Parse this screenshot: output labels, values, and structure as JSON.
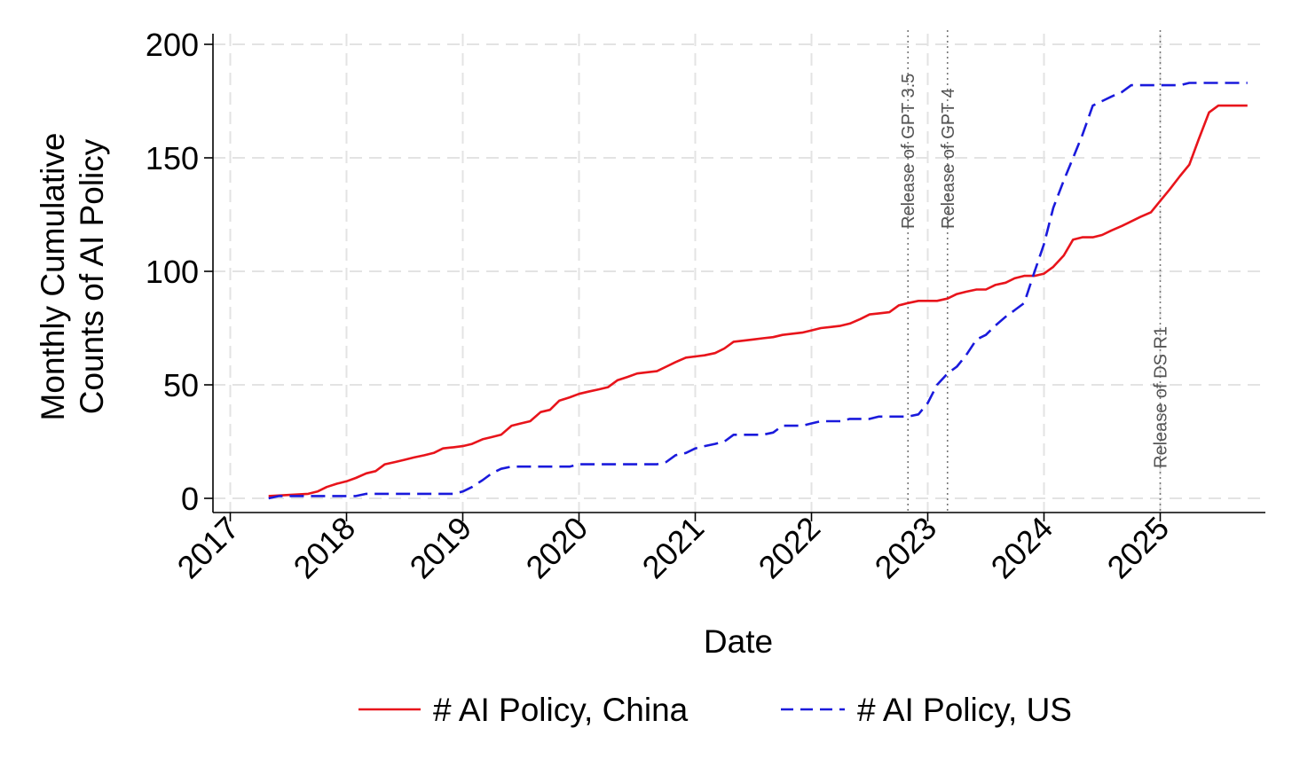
{
  "chart_data": {
    "type": "line",
    "title": "",
    "xlabel": "Date",
    "ylabel_lines": [
      "Monthly Cumulative",
      "Counts of AI Policy"
    ],
    "ylim": [
      0,
      200
    ],
    "xlim": [
      2017.0,
      2025.85
    ],
    "y_ticks": [
      0,
      50,
      100,
      150,
      200
    ],
    "x_ticks": [
      {
        "value": 2017,
        "label": "2017"
      },
      {
        "value": 2018,
        "label": "2018"
      },
      {
        "value": 2019,
        "label": "2019"
      },
      {
        "value": 2020,
        "label": "2020"
      },
      {
        "value": 2021,
        "label": "2021"
      },
      {
        "value": 2022,
        "label": "2022"
      },
      {
        "value": 2023,
        "label": "2023"
      },
      {
        "value": 2024,
        "label": "2024"
      },
      {
        "value": 2025,
        "label": "2025"
      }
    ],
    "grid": true,
    "legend_position": "bottom",
    "annotations": [
      {
        "x": 2022.83,
        "label": "Release of GPT 3.5"
      },
      {
        "x": 2023.17,
        "label": "Release of GPT 4"
      },
      {
        "x": 2025.0,
        "label": "Release of DS R1"
      }
    ],
    "series": [
      {
        "name": "# AI Policy, China",
        "color": "#e8141b",
        "style": "solid",
        "x": [
          2017.33,
          2017.5,
          2017.67,
          2017.75,
          2017.83,
          2017.92,
          2018.0,
          2018.08,
          2018.17,
          2018.25,
          2018.33,
          2018.42,
          2018.5,
          2018.58,
          2018.67,
          2018.75,
          2018.83,
          2018.92,
          2019.0,
          2019.08,
          2019.17,
          2019.25,
          2019.33,
          2019.42,
          2019.5,
          2019.58,
          2019.67,
          2019.75,
          2019.83,
          2019.92,
          2020.0,
          2020.08,
          2020.17,
          2020.25,
          2020.33,
          2020.42,
          2020.5,
          2020.58,
          2020.67,
          2020.75,
          2020.83,
          2020.92,
          2021.0,
          2021.08,
          2021.17,
          2021.25,
          2021.33,
          2021.42,
          2021.5,
          2021.58,
          2021.67,
          2021.75,
          2021.83,
          2021.92,
          2022.0,
          2022.08,
          2022.17,
          2022.25,
          2022.33,
          2022.42,
          2022.5,
          2022.58,
          2022.67,
          2022.75,
          2022.83,
          2022.92,
          2023.0,
          2023.08,
          2023.17,
          2023.25,
          2023.33,
          2023.42,
          2023.5,
          2023.58,
          2023.67,
          2023.75,
          2023.83,
          2023.92,
          2024.0,
          2024.08,
          2024.17,
          2024.25,
          2024.33,
          2024.42,
          2024.5,
          2024.58,
          2024.67,
          2024.75,
          2024.83,
          2024.92,
          2025.0,
          2025.08,
          2025.17,
          2025.25,
          2025.33,
          2025.42,
          2025.5,
          2025.58,
          2025.67,
          2025.75
        ],
        "y": [
          1,
          1.5,
          2,
          3,
          5,
          6.5,
          7.5,
          9,
          11,
          12,
          15,
          16,
          17,
          18,
          19,
          20,
          22,
          22.5,
          23,
          24,
          26,
          27,
          28,
          32,
          33,
          34,
          38,
          39,
          43,
          44.5,
          46,
          47,
          48,
          49,
          52,
          53.5,
          55,
          55.5,
          56,
          58,
          60,
          62,
          62.5,
          63,
          64,
          66,
          69,
          69.5,
          70,
          70.5,
          71,
          72,
          72.5,
          73,
          74,
          75,
          75.5,
          76,
          77,
          79,
          81,
          81.5,
          82,
          85,
          86,
          87,
          87,
          87,
          88,
          90,
          91,
          92,
          92,
          94,
          95,
          97,
          98,
          98,
          99,
          102,
          107,
          114,
          115,
          115,
          116,
          118,
          120,
          122,
          124,
          126,
          131,
          136,
          142,
          147,
          158,
          170,
          173,
          173,
          173,
          173
        ],
        "_note": "last x trimmed"
      },
      {
        "name": "# AI Policy, US",
        "color": "#1a1adc",
        "style": "dashed",
        "x": [
          2017.33,
          2017.42,
          2017.5,
          2017.58,
          2017.67,
          2017.75,
          2017.83,
          2017.92,
          2018.0,
          2018.08,
          2018.17,
          2018.25,
          2018.33,
          2018.42,
          2018.5,
          2018.58,
          2018.67,
          2018.75,
          2018.83,
          2018.92,
          2019.0,
          2019.08,
          2019.17,
          2019.25,
          2019.33,
          2019.42,
          2019.5,
          2019.58,
          2019.67,
          2019.75,
          2019.83,
          2019.92,
          2020.0,
          2020.08,
          2020.17,
          2020.25,
          2020.33,
          2020.42,
          2020.5,
          2020.58,
          2020.67,
          2020.75,
          2020.83,
          2020.92,
          2021.0,
          2021.08,
          2021.17,
          2021.25,
          2021.33,
          2021.42,
          2021.5,
          2021.58,
          2021.67,
          2021.75,
          2021.83,
          2021.92,
          2022.0,
          2022.08,
          2022.17,
          2022.25,
          2022.33,
          2022.42,
          2022.5,
          2022.58,
          2022.67,
          2022.75,
          2022.83,
          2022.92,
          2023.0,
          2023.08,
          2023.17,
          2023.25,
          2023.33,
          2023.42,
          2023.5,
          2023.58,
          2023.67,
          2023.75,
          2023.83,
          2023.92,
          2024.0,
          2024.08,
          2024.17,
          2024.25,
          2024.33,
          2024.42,
          2024.5,
          2024.58,
          2024.67,
          2024.75,
          2024.83,
          2024.92,
          2025.0,
          2025.08,
          2025.17,
          2025.25,
          2025.33,
          2025.42,
          2025.5,
          2025.58,
          2025.67,
          2025.75
        ],
        "y": [
          0,
          1,
          1,
          1,
          1,
          1,
          1,
          1,
          1,
          1,
          2,
          2,
          2,
          2,
          2,
          2,
          2,
          2,
          2,
          2,
          3,
          5,
          8,
          11,
          13,
          14,
          14,
          14,
          14,
          14,
          14,
          14,
          15,
          15,
          15,
          15,
          15,
          15,
          15,
          15,
          15,
          16,
          19,
          20,
          22,
          23,
          24,
          25,
          28,
          28,
          28,
          28,
          29,
          32,
          32,
          32,
          33,
          34,
          34,
          34,
          35,
          35,
          35,
          36,
          36,
          36,
          36,
          37,
          42,
          50,
          55,
          58,
          63,
          70,
          72,
          76,
          80,
          83,
          86,
          100,
          112,
          128,
          140,
          150,
          160,
          173,
          175,
          177,
          179,
          182,
          182,
          182,
          182,
          182,
          182,
          183,
          183,
          183,
          183,
          183,
          183,
          183
        ]
      }
    ]
  }
}
